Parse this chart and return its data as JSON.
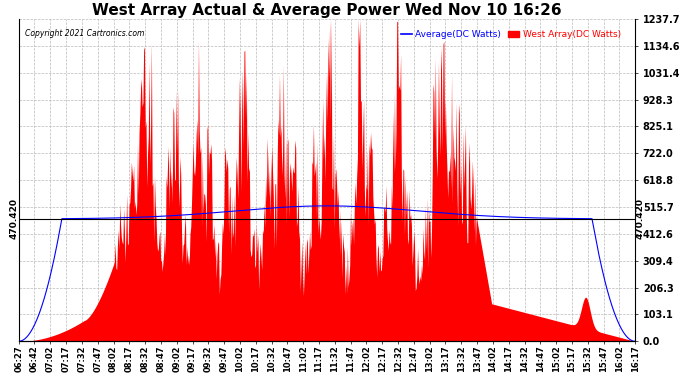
{
  "title": "West Array Actual & Average Power Wed Nov 10 16:26",
  "copyright": "Copyright 2021 Cartronics.com",
  "legend_avg": "Average(DC Watts)",
  "legend_west": "West Array(DC Watts)",
  "ymin": 0.0,
  "ymax": 1237.7,
  "yticks": [
    0.0,
    103.1,
    206.3,
    309.4,
    412.6,
    515.7,
    618.8,
    722.0,
    825.1,
    928.3,
    1031.4,
    1134.6,
    1237.7
  ],
  "hline_value": 470.42,
  "hline_label": "470.420",
  "bg_color": "#ffffff",
  "fill_color": "#ff0000",
  "avg_color": "#0000ff",
  "west_color": "#ff0000",
  "grid_color": "#bbbbbb",
  "title_fontsize": 11,
  "xtick_labels": [
    "06:27",
    "06:42",
    "07:02",
    "07:17",
    "07:32",
    "07:47",
    "08:02",
    "08:17",
    "08:32",
    "08:47",
    "09:02",
    "09:17",
    "09:32",
    "09:47",
    "10:02",
    "10:17",
    "10:32",
    "10:47",
    "11:02",
    "11:17",
    "11:32",
    "11:47",
    "12:02",
    "12:17",
    "12:32",
    "12:47",
    "13:02",
    "13:17",
    "13:32",
    "13:47",
    "14:02",
    "14:17",
    "14:32",
    "14:47",
    "15:02",
    "15:17",
    "15:32",
    "15:47",
    "16:02",
    "16:17"
  ]
}
